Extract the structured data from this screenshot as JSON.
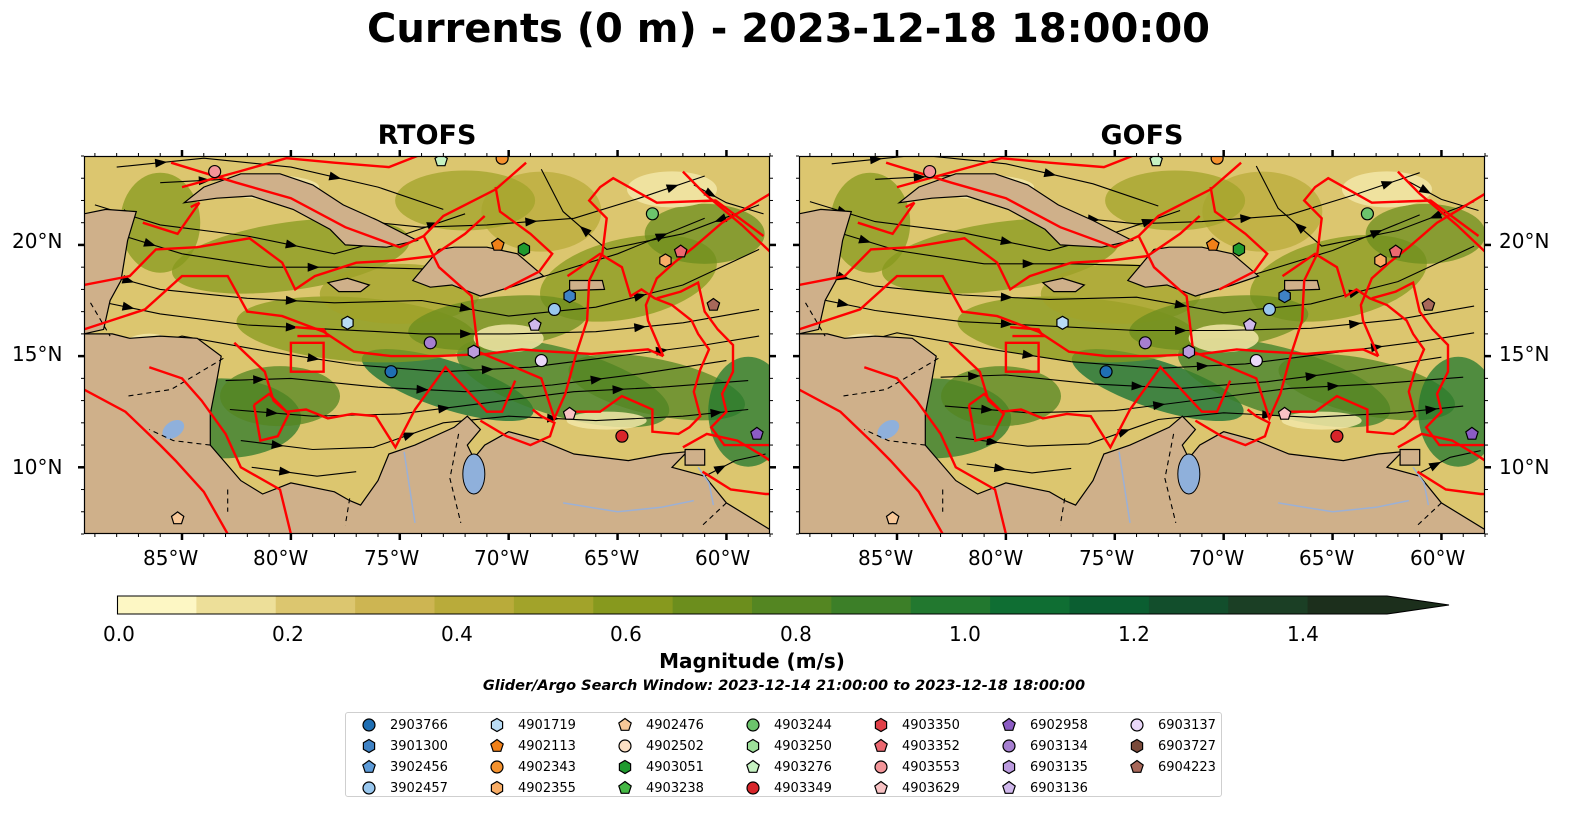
{
  "title": "Currents (0 m) - 2023-12-18 18:00:00",
  "panels": [
    {
      "title": "RTOFS"
    },
    {
      "title": "GOFS"
    }
  ],
  "map": {
    "lon_range": [
      -89.5,
      -58
    ],
    "lat_range": [
      7,
      24
    ],
    "lon_ticks": [
      "85°W",
      "80°W",
      "75°W",
      "70°W",
      "65°W",
      "60°W"
    ],
    "lat_ticks": [
      "20°N",
      "15°N",
      "10°N"
    ],
    "colors": {
      "land": "#cfb08a",
      "eez": "#ff0000",
      "water_inland": "#8fb0db"
    }
  },
  "colorbar": {
    "label": "Magnitude (m/s)",
    "ticks": [
      "0.0",
      "0.2",
      "0.4",
      "0.6",
      "0.8",
      "1.0",
      "1.2",
      "1.4"
    ],
    "range": [
      0,
      1.6
    ],
    "extend": "max",
    "colors": [
      "#fdf7c4",
      "#eddf99",
      "#dcc66f",
      "#cdb552",
      "#b9ab3a",
      "#a2a32a",
      "#87991e",
      "#6c8e1d",
      "#548622",
      "#3c7f28",
      "#22782f",
      "#0f6e33",
      "#0b5e31",
      "#124e2c",
      "#1b3f25",
      "#1c2f1c"
    ]
  },
  "search_window": "Glider/Argo Search Window: 2023-12-14 21:00:00 to 2023-12-18 18:00:00",
  "legend": [
    {
      "id": "2903766",
      "marker": "circle",
      "color": "#1f6fb4"
    },
    {
      "id": "3901300",
      "marker": "hexagon",
      "color": "#3f82c4"
    },
    {
      "id": "3902456",
      "marker": "pentagon",
      "color": "#5d9bd8"
    },
    {
      "id": "3902457",
      "marker": "circle",
      "color": "#99c7ee"
    },
    {
      "id": "4901719",
      "marker": "hexagon",
      "color": "#b9dcf5"
    },
    {
      "id": "4902113",
      "marker": "pentagon",
      "color": "#f08018"
    },
    {
      "id": "4902343",
      "marker": "circle",
      "color": "#f5922e"
    },
    {
      "id": "4902355",
      "marker": "hexagon",
      "color": "#f8ad66"
    },
    {
      "id": "4902476",
      "marker": "pentagon",
      "color": "#f8c898"
    },
    {
      "id": "4902502",
      "marker": "circle",
      "color": "#fde0c4"
    },
    {
      "id": "4903051",
      "marker": "hexagon",
      "color": "#1f9a2e"
    },
    {
      "id": "4903238",
      "marker": "pentagon",
      "color": "#45b845"
    },
    {
      "id": "4903244",
      "marker": "circle",
      "color": "#6cc46c"
    },
    {
      "id": "4903250",
      "marker": "hexagon",
      "color": "#9ee09a"
    },
    {
      "id": "4903276",
      "marker": "pentagon",
      "color": "#c6f2c2"
    },
    {
      "id": "4903349",
      "marker": "circle",
      "color": "#d8252a"
    },
    {
      "id": "4903350",
      "marker": "hexagon",
      "color": "#e04048"
    },
    {
      "id": "4903352",
      "marker": "pentagon",
      "color": "#ec6870"
    },
    {
      "id": "4903553",
      "marker": "circle",
      "color": "#f39599"
    },
    {
      "id": "4903629",
      "marker": "pentagon",
      "color": "#f8c2c4"
    },
    {
      "id": "6902958",
      "marker": "pentagon",
      "color": "#8c5cc4"
    },
    {
      "id": "6903134",
      "marker": "circle",
      "color": "#a67fd0"
    },
    {
      "id": "6903135",
      "marker": "hexagon",
      "color": "#bb9bde"
    },
    {
      "id": "6903136",
      "marker": "pentagon",
      "color": "#d0b8ec"
    },
    {
      "id": "6903137",
      "marker": "circle",
      "color": "#ead8f8"
    },
    {
      "id": "6903727",
      "marker": "hexagon",
      "color": "#7a4a3a"
    },
    {
      "id": "6904223",
      "marker": "pentagon",
      "color": "#a8685a"
    }
  ],
  "stations": [
    {
      "id": "2903766",
      "lon": -75.4,
      "lat": 14.3
    },
    {
      "id": "3901300",
      "lon": -67.2,
      "lat": 17.7
    },
    {
      "id": "3902457",
      "lon": -67.9,
      "lat": 17.1
    },
    {
      "id": "4901719",
      "lon": -77.4,
      "lat": 16.5
    },
    {
      "id": "4902113",
      "lon": -70.5,
      "lat": 20.0
    },
    {
      "id": "4902343",
      "lon": -70.3,
      "lat": 23.9
    },
    {
      "id": "4902355",
      "lon": -62.8,
      "lat": 19.3
    },
    {
      "id": "4902476",
      "lon": -85.2,
      "lat": 7.7
    },
    {
      "id": "4903051",
      "lon": -69.3,
      "lat": 19.8
    },
    {
      "id": "4903244",
      "lon": -63.4,
      "lat": 21.4
    },
    {
      "id": "4903276",
      "lon": -73.1,
      "lat": 23.8
    },
    {
      "id": "4903349",
      "lon": -64.8,
      "lat": 11.4
    },
    {
      "id": "4903352",
      "lon": -62.1,
      "lat": 19.7
    },
    {
      "id": "4903553",
      "lon": -83.5,
      "lat": 23.3
    },
    {
      "id": "4903629",
      "lon": -67.2,
      "lat": 12.4
    },
    {
      "id": "6902958",
      "lon": -58.6,
      "lat": 11.5
    },
    {
      "id": "6903134",
      "lon": -73.6,
      "lat": 15.6
    },
    {
      "id": "6903135",
      "lon": -71.6,
      "lat": 15.2
    },
    {
      "id": "6903136",
      "lon": -68.8,
      "lat": 16.4
    },
    {
      "id": "6903137",
      "lon": -68.5,
      "lat": 14.8
    },
    {
      "id": "6904223",
      "lon": -60.6,
      "lat": 17.3
    }
  ]
}
